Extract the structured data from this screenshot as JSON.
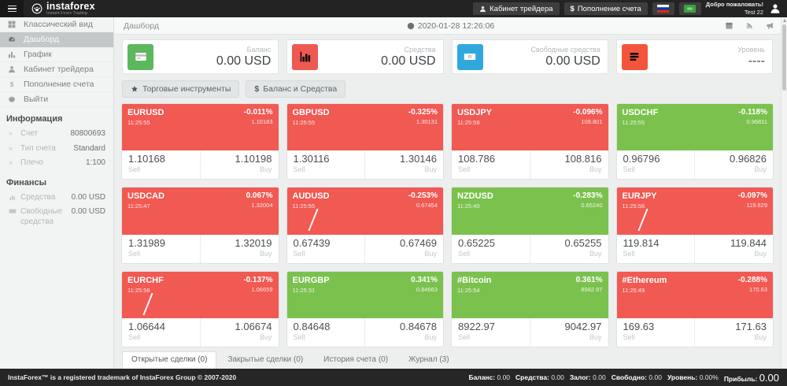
{
  "colors": {
    "header_bg": "#232323",
    "footer_bg": "#262626",
    "tile_down": "#f15953",
    "tile_up": "#7bc14d"
  },
  "header": {
    "logo_title": "instaforex",
    "logo_subtitle": "Instant Forex Trading",
    "cabinet_button": "Кабинет трейдера",
    "deposit_prefix": "$",
    "deposit_button": "Пополнение счета",
    "welcome_line1": "Добро пожаловать!",
    "welcome_line2": "Test 22"
  },
  "sidebar": {
    "menu": [
      {
        "name": "classic-view",
        "icon": "grid-icon",
        "label": "Классический вид",
        "active": false
      },
      {
        "name": "dashboard",
        "icon": "dashboard-icon",
        "label": "Дашборд",
        "active": true
      },
      {
        "name": "chart",
        "icon": "chart-icon",
        "label": "График",
        "active": false
      },
      {
        "name": "trader-cabinet",
        "icon": "user-icon",
        "label": "Кабинет трейдера",
        "active": false
      },
      {
        "name": "deposit",
        "icon": "dollar-icon",
        "label": "Пополнение счета",
        "active": false
      },
      {
        "name": "logout",
        "icon": "power-icon",
        "label": "Выйти",
        "active": false
      }
    ],
    "info_header": "Информация",
    "info_rows": [
      {
        "icon": "chevrons-icon",
        "label": "Счет",
        "value": "80800693"
      },
      {
        "icon": "chevrons-icon",
        "label": "Тип счета",
        "value": "Standard"
      },
      {
        "icon": "chevrons-icon",
        "label": "Плечо",
        "value": "1:100"
      }
    ],
    "finance_header": "Финансы",
    "finance_rows": [
      {
        "icon": "finance-chart-icon",
        "label": "Средства",
        "value": "0.00 USD"
      },
      {
        "icon": "finance-note-icon",
        "label": "Свободные средства",
        "value": "0.00 USD"
      }
    ]
  },
  "topbar": {
    "breadcrumb": "Дашборд",
    "datetime": "2020-01-28 12:26:06"
  },
  "summary_cards": [
    {
      "name": "balance",
      "icon": "card-icon",
      "color": "#5cb85c",
      "label": "Баланс",
      "value": "0.00 USD"
    },
    {
      "name": "funds",
      "icon": "bars-chart-icon",
      "color": "#ee5a52",
      "label": "Средства",
      "value": "0.00 USD"
    },
    {
      "name": "free-funds",
      "icon": "banknote-icon",
      "color": "#31a8dd",
      "label": "Свободные средства",
      "value": "0.00 USD"
    },
    {
      "name": "level",
      "icon": "list-icon",
      "color": "#f3553c",
      "label": "Уровень",
      "value": "----"
    }
  ],
  "toolbar": {
    "instruments_button": "Торговые инструменты",
    "balance_prefix": "$",
    "balance_button": "Баланс и Средства"
  },
  "tile_labels": {
    "sell": "Sell",
    "buy": "Buy"
  },
  "tiles": [
    {
      "symbol": "EURUSD",
      "time": "11:25:55",
      "change": "-0.011%",
      "mid": "1.10183",
      "sell": "1.10168",
      "buy": "1.10198",
      "trend": "down",
      "spark": false
    },
    {
      "symbol": "GBPUSD",
      "time": "11:25:55",
      "change": "-0.325%",
      "mid": "1.30131",
      "sell": "1.30116",
      "buy": "1.30146",
      "trend": "down",
      "spark": false
    },
    {
      "symbol": "USDJPY",
      "time": "11:25:56",
      "change": "-0.096%",
      "mid": "108.801",
      "sell": "108.786",
      "buy": "108.816",
      "trend": "down",
      "spark": false
    },
    {
      "symbol": "USDCHF",
      "time": "11:25:55",
      "change": "-0.118%",
      "mid": "0.96811",
      "sell": "0.96796",
      "buy": "0.96826",
      "trend": "up",
      "spark": false
    },
    {
      "symbol": "USDCAD",
      "time": "11:25:47",
      "change": "0.067%",
      "mid": "1.32004",
      "sell": "1.31989",
      "buy": "1.32019",
      "trend": "down",
      "spark": false
    },
    {
      "symbol": "AUDUSD",
      "time": "11:25:55",
      "change": "-0.253%",
      "mid": "0.67454",
      "sell": "0.67439",
      "buy": "0.67469",
      "trend": "down",
      "spark": true
    },
    {
      "symbol": "NZDUSD",
      "time": "11:25:40",
      "change": "-0.283%",
      "mid": "0.65240",
      "sell": "0.65225",
      "buy": "0.65255",
      "trend": "up",
      "spark": false
    },
    {
      "symbol": "EURJPY",
      "time": "11:25:56",
      "change": "-0.097%",
      "mid": "119.829",
      "sell": "119.814",
      "buy": "119.844",
      "trend": "down",
      "spark": true
    },
    {
      "symbol": "EURCHF",
      "time": "11:25:56",
      "change": "-0.137%",
      "mid": "1.06659",
      "sell": "1.06644",
      "buy": "1.06674",
      "trend": "down",
      "spark": true
    },
    {
      "symbol": "EURGBP",
      "time": "11:25:31",
      "change": "0.341%",
      "mid": "0.84663",
      "sell": "0.84648",
      "buy": "0.84678",
      "trend": "up",
      "spark": false
    },
    {
      "symbol": "#Bitcoin",
      "time": "11:25:54",
      "change": "0.361%",
      "mid": "8982.97",
      "sell": "8922.97",
      "buy": "9042.97",
      "trend": "up",
      "spark": false
    },
    {
      "symbol": "#Ethereum",
      "time": "11:25:49",
      "change": "-0.288%",
      "mid": "170.63",
      "sell": "169.63",
      "buy": "171.63",
      "trend": "down",
      "spark": false
    }
  ],
  "tabs": [
    {
      "label": "Открытые сделки (0)",
      "active": true
    },
    {
      "label": "Закрытые сделки (0)",
      "active": false
    },
    {
      "label": "История счета (0)",
      "active": false
    },
    {
      "label": "Журнал (3)",
      "active": false
    }
  ],
  "footer": {
    "trademark": "InstaForex™ is a registered trademark of InstaForex Group © 2007-2020",
    "stats": [
      {
        "label": "Баланс:",
        "value": "0.00",
        "big": false
      },
      {
        "label": "Средства:",
        "value": "0.00",
        "big": false
      },
      {
        "label": "Залог:",
        "value": "0.00",
        "big": false
      },
      {
        "label": "Свободно:",
        "value": "0.00",
        "big": false
      },
      {
        "label": "Уровень:",
        "value": "0.00%",
        "big": false
      },
      {
        "label": "Прибыль:",
        "value": "0.00",
        "big": true
      }
    ]
  }
}
